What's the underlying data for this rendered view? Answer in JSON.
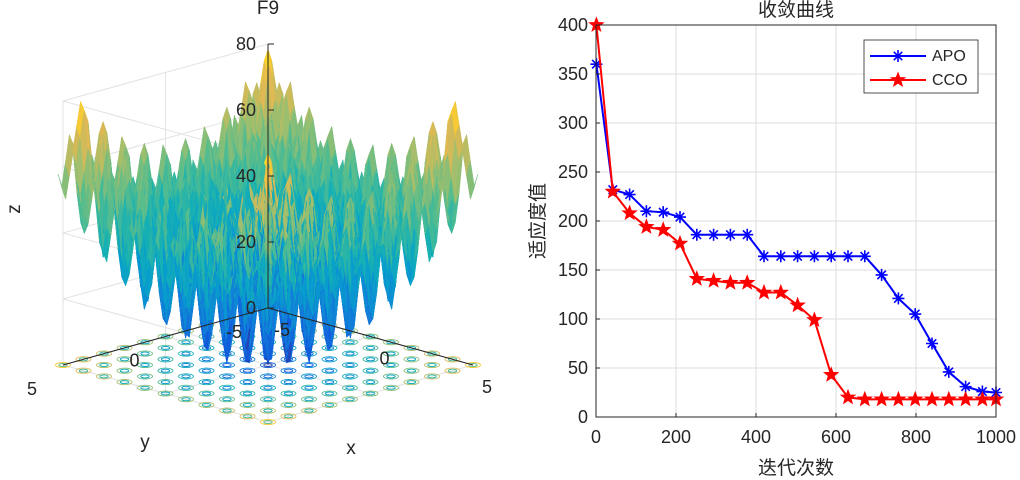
{
  "chart_data": [
    {
      "type": "surface3d",
      "title": "F9",
      "xlabel": "x",
      "ylabel": "y",
      "zlabel": "z",
      "xlim": [
        -5,
        5
      ],
      "ylim": [
        -5,
        5
      ],
      "zlim": [
        0,
        80
      ],
      "x_ticks": [
        "-5",
        "0",
        "5"
      ],
      "y_ticks": [
        "-5",
        "0",
        "5"
      ],
      "z_ticks": [
        "0",
        "20",
        "40",
        "60",
        "80"
      ],
      "function": "Rastrigin: z = sum(x_i^2 - 10*cos(2*pi*x_i) + 10)",
      "grid": true,
      "contour_on_floor": true,
      "colormap": "parula"
    },
    {
      "type": "line",
      "title": "收敛曲线",
      "xlabel": "迭代次数",
      "ylabel": "适应度值",
      "xlim": [
        0,
        1000
      ],
      "ylim": [
        0,
        400
      ],
      "x_ticks": [
        "0",
        "200",
        "400",
        "600",
        "800",
        "1000"
      ],
      "y_ticks": [
        "0",
        "50",
        "100",
        "150",
        "200",
        "250",
        "300",
        "350",
        "400"
      ],
      "grid": true,
      "legend_position": "top-right",
      "series": [
        {
          "name": "APO",
          "color": "#0000ff",
          "marker": "asterisk",
          "x": [
            1,
            42,
            84,
            126,
            168,
            210,
            252,
            294,
            336,
            378,
            420,
            462,
            504,
            546,
            588,
            630,
            672,
            714,
            756,
            798,
            840,
            882,
            924,
            966,
            1000
          ],
          "y": [
            360,
            232,
            227,
            210,
            209,
            204,
            186,
            186,
            186,
            186,
            164,
            164,
            164,
            164,
            164,
            164,
            164,
            145,
            121,
            105,
            75,
            46,
            31,
            26,
            25
          ]
        },
        {
          "name": "CCO",
          "color": "#ff0000",
          "marker": "pentagram",
          "x": [
            1,
            42,
            84,
            126,
            168,
            210,
            252,
            294,
            336,
            378,
            420,
            462,
            504,
            546,
            588,
            630,
            672,
            714,
            756,
            798,
            840,
            882,
            924,
            966,
            1000
          ],
          "y": [
            400,
            230,
            208,
            194,
            191,
            177,
            141,
            139,
            137,
            137,
            127,
            127,
            114,
            99,
            43,
            20,
            18,
            18,
            18,
            18,
            18,
            18,
            18,
            18,
            18
          ]
        }
      ]
    }
  ]
}
